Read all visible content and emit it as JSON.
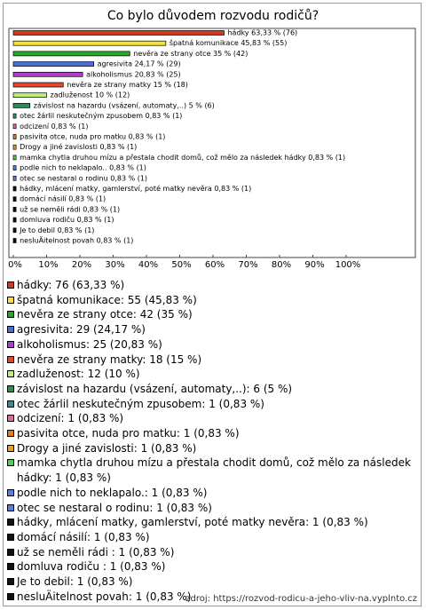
{
  "chart_data": {
    "type": "hbar",
    "title": "Co bylo důvodem rozvodu rodičů?",
    "categories": [
      "hádky",
      "špatná komunikace",
      "nevěra ze strany otce",
      "agresivita",
      "alkoholismus",
      "nevěra ze strany matky",
      "zadluženost",
      "závislost na hazardu (vsázení, automaty,..)",
      "otec žárlil neskutečným zpusobem",
      "odcizení",
      "pasivita otce, nuda pro matku",
      "Drogy a jiné zavislosti",
      "mamka chytla druhou mízu a přestala chodit domů, což mělo za následek hádky",
      "podle nich to neklapalo..",
      "otec se nestaral o rodinu",
      "hádky, mlácení matky, gamlerství, poté matky nevěra",
      "domácí násilí",
      "už se neměli rádi ",
      "domluva rodiču",
      "Je to debil",
      "nesluÄitelnost povah"
    ],
    "values": [
      63.33,
      45.83,
      35,
      24.17,
      20.83,
      15,
      10,
      5,
      0.83,
      0.83,
      0.83,
      0.83,
      0.83,
      0.83,
      0.83,
      0.83,
      0.83,
      0.83,
      0.83,
      0.83,
      0.83
    ],
    "value_labels": [
      "hádky 63,33 % (76)",
      "špatná komunikace 45,83 % (55)",
      "nevěra ze strany otce 35 % (42)",
      "agresivita 24,17 % (29)",
      "alkoholismus 20,83 % (25)",
      "nevěra ze strany matky 15 % (18)",
      "zadluženost 10 % (12)",
      "závislost na hazardu (vsázení, automaty,..) 5 % (6)",
      "otec žárlil neskutečným zpusobem 0,83 % (1)",
      "odcizení 0,83 % (1)",
      "pasivita otce, nuda pro matku 0,83 % (1)",
      "Drogy a jiné zavislosti 0,83 % (1)",
      "mamka chytla druhou mízu a přestala chodit domů, což mělo za následek hádky 0,83 % (1)",
      "podle nich to neklapalo.. 0,83 % (1)",
      "otec se nestaral o rodinu 0,83 % (1)",
      "hádky, mlácení matky, gamlerství, poté matky nevěra 0,83 % (1)",
      "domácí násilí 0,83 % (1)",
      "už se neměli rádi  0,83 % (1)",
      "domluva rodiču 0,83 % (1)",
      "Je to debil 0,83 % (1)",
      "nesluÄitelnost povah 0,83 % (1)"
    ],
    "legend_labels": [
      "hádky: 76 (63,33 %)",
      "špatná komunikace: 55 (45,83 %)",
      "nevěra ze strany otce: 42 (35 %)",
      "agresivita: 29 (24,17 %)",
      "alkoholismus: 25 (20,83 %)",
      "nevěra ze strany matky: 18 (15 %)",
      "zadluženost: 12 (10 %)",
      "závislost na hazardu (vsázení, automaty,..): 6 (5 %)",
      "otec žárlil neskutečným zpusobem: 1 (0,83 %)",
      "odcizení: 1 (0,83 %)",
      "pasivita otce, nuda pro matku: 1 (0,83 %)",
      "Drogy a jiné zavislosti: 1 (0,83 %)",
      "mamka chytla druhou mízu a přestala chodit domů, což mělo za následek hádky: 1 (0,83 %)",
      "podle nich to neklapalo.: 1 (0,83 %)",
      "otec se nestaral o rodinu: 1 (0,83 %)",
      "hádky, mlácení matky, gamlerství, poté matky nevěra: 1 (0,83 %)",
      "domácí násilí: 1 (0,83 %)",
      "už se neměli rádi : 1 (0,83 %)",
      "domluva rodiču : 1 (0,83 %)",
      "Je to debil: 1 (0,83 %)",
      "nesluÄitelnost povah: 1 (0,83 %)"
    ],
    "colors": [
      "#d2391e",
      "#f4e23a",
      "#2aa52a",
      "#4a6fd6",
      "#b23ccc",
      "#e8452a",
      "#b9f07c",
      "#2e8b57",
      "#3a8c8c",
      "#d96fa0",
      "#e87c1e",
      "#e8a020",
      "#52cf52",
      "#5a7fd8",
      "#5a7fd8",
      "#111111",
      "#111111",
      "#111111",
      "#111111",
      "#111111",
      "#111111"
    ],
    "xlim": [
      0,
      100
    ],
    "xticks": [
      {
        "value": 0,
        "label": "0%"
      },
      {
        "value": 10,
        "label": "10%"
      },
      {
        "value": 20,
        "label": "20%"
      },
      {
        "value": 30,
        "label": "30%"
      },
      {
        "value": 40,
        "label": "40%"
      },
      {
        "value": 50,
        "label": "50%"
      },
      {
        "value": 60,
        "label": "60%"
      },
      {
        "value": 70,
        "label": "70%"
      },
      {
        "value": 80,
        "label": "80%"
      },
      {
        "value": 90,
        "label": "90%"
      },
      {
        "value": 100,
        "label": "100%"
      }
    ],
    "source": "zdroj: https://rozvod-rodicu-a-jeho-vliv-na.vyplnto.cz"
  }
}
